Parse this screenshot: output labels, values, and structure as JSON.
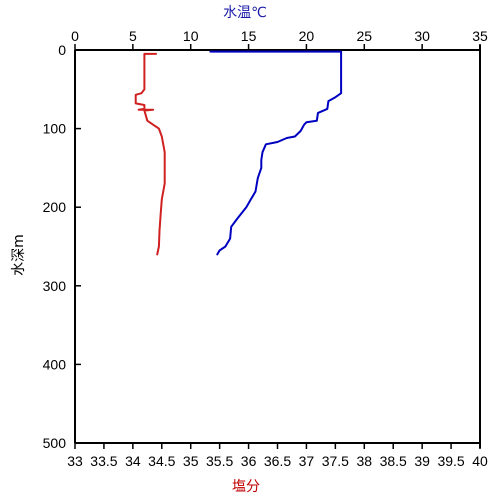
{
  "chart_data": {
    "type": "line",
    "top_axis": {
      "label": "水温℃",
      "color": "#1a1aa8",
      "range": [
        0,
        35
      ],
      "ticks": [
        "0",
        "5",
        "10",
        "15",
        "20",
        "25",
        "30",
        "35"
      ]
    },
    "bottom_axis": {
      "label": "塩分",
      "color": "#c00000",
      "range": [
        33,
        40
      ],
      "ticks": [
        "33",
        "33.5",
        "34",
        "34.5",
        "35",
        "35.5",
        "36",
        "36.5",
        "37",
        "37.5",
        "38",
        "38.5",
        "39",
        "39.5",
        "40"
      ]
    },
    "y_axis": {
      "label": "水深m",
      "range": [
        0,
        500
      ],
      "inverted": true,
      "ticks": [
        "0",
        "100",
        "200",
        "300",
        "400",
        "500"
      ]
    },
    "grid": false,
    "series": [
      {
        "quantity": "temperature",
        "axis": "top",
        "color": "#0000c0",
        "points": [
          {
            "x": 11.7,
            "y": 2
          },
          {
            "x": 23.0,
            "y": 2
          },
          {
            "x": 23.0,
            "y": 55
          },
          {
            "x": 22.5,
            "y": 60
          },
          {
            "x": 21.9,
            "y": 65
          },
          {
            "x": 21.8,
            "y": 75
          },
          {
            "x": 21.0,
            "y": 80
          },
          {
            "x": 20.9,
            "y": 90
          },
          {
            "x": 20.0,
            "y": 92
          },
          {
            "x": 19.8,
            "y": 95
          },
          {
            "x": 19.5,
            "y": 103
          },
          {
            "x": 19.0,
            "y": 110
          },
          {
            "x": 18.3,
            "y": 112
          },
          {
            "x": 17.5,
            "y": 117
          },
          {
            "x": 16.5,
            "y": 120
          },
          {
            "x": 16.2,
            "y": 130
          },
          {
            "x": 16.1,
            "y": 140
          },
          {
            "x": 16.1,
            "y": 150
          },
          {
            "x": 15.8,
            "y": 163
          },
          {
            "x": 15.6,
            "y": 180
          },
          {
            "x": 15.2,
            "y": 190
          },
          {
            "x": 14.8,
            "y": 200
          },
          {
            "x": 14.0,
            "y": 215
          },
          {
            "x": 13.5,
            "y": 225
          },
          {
            "x": 13.4,
            "y": 240
          },
          {
            "x": 13.0,
            "y": 250
          },
          {
            "x": 12.5,
            "y": 255
          },
          {
            "x": 12.3,
            "y": 260
          }
        ]
      },
      {
        "quantity": "salinity",
        "axis": "bottom",
        "color": "#d02020",
        "points": [
          {
            "x": 34.2,
            "y": 5
          },
          {
            "x": 34.4,
            "y": 5
          },
          {
            "x": 34.2,
            "y": 5
          },
          {
            "x": 34.2,
            "y": 50
          },
          {
            "x": 34.15,
            "y": 55
          },
          {
            "x": 34.05,
            "y": 57
          },
          {
            "x": 34.05,
            "y": 68
          },
          {
            "x": 34.2,
            "y": 70
          },
          {
            "x": 34.2,
            "y": 75
          },
          {
            "x": 34.1,
            "y": 76
          },
          {
            "x": 34.35,
            "y": 76
          },
          {
            "x": 34.2,
            "y": 77
          },
          {
            "x": 34.25,
            "y": 90
          },
          {
            "x": 34.35,
            "y": 95
          },
          {
            "x": 34.45,
            "y": 100
          },
          {
            "x": 34.5,
            "y": 110
          },
          {
            "x": 34.55,
            "y": 130
          },
          {
            "x": 34.55,
            "y": 150
          },
          {
            "x": 34.55,
            "y": 170
          },
          {
            "x": 34.5,
            "y": 190
          },
          {
            "x": 34.48,
            "y": 210
          },
          {
            "x": 34.46,
            "y": 230
          },
          {
            "x": 34.45,
            "y": 250
          },
          {
            "x": 34.42,
            "y": 260
          }
        ]
      }
    ]
  }
}
